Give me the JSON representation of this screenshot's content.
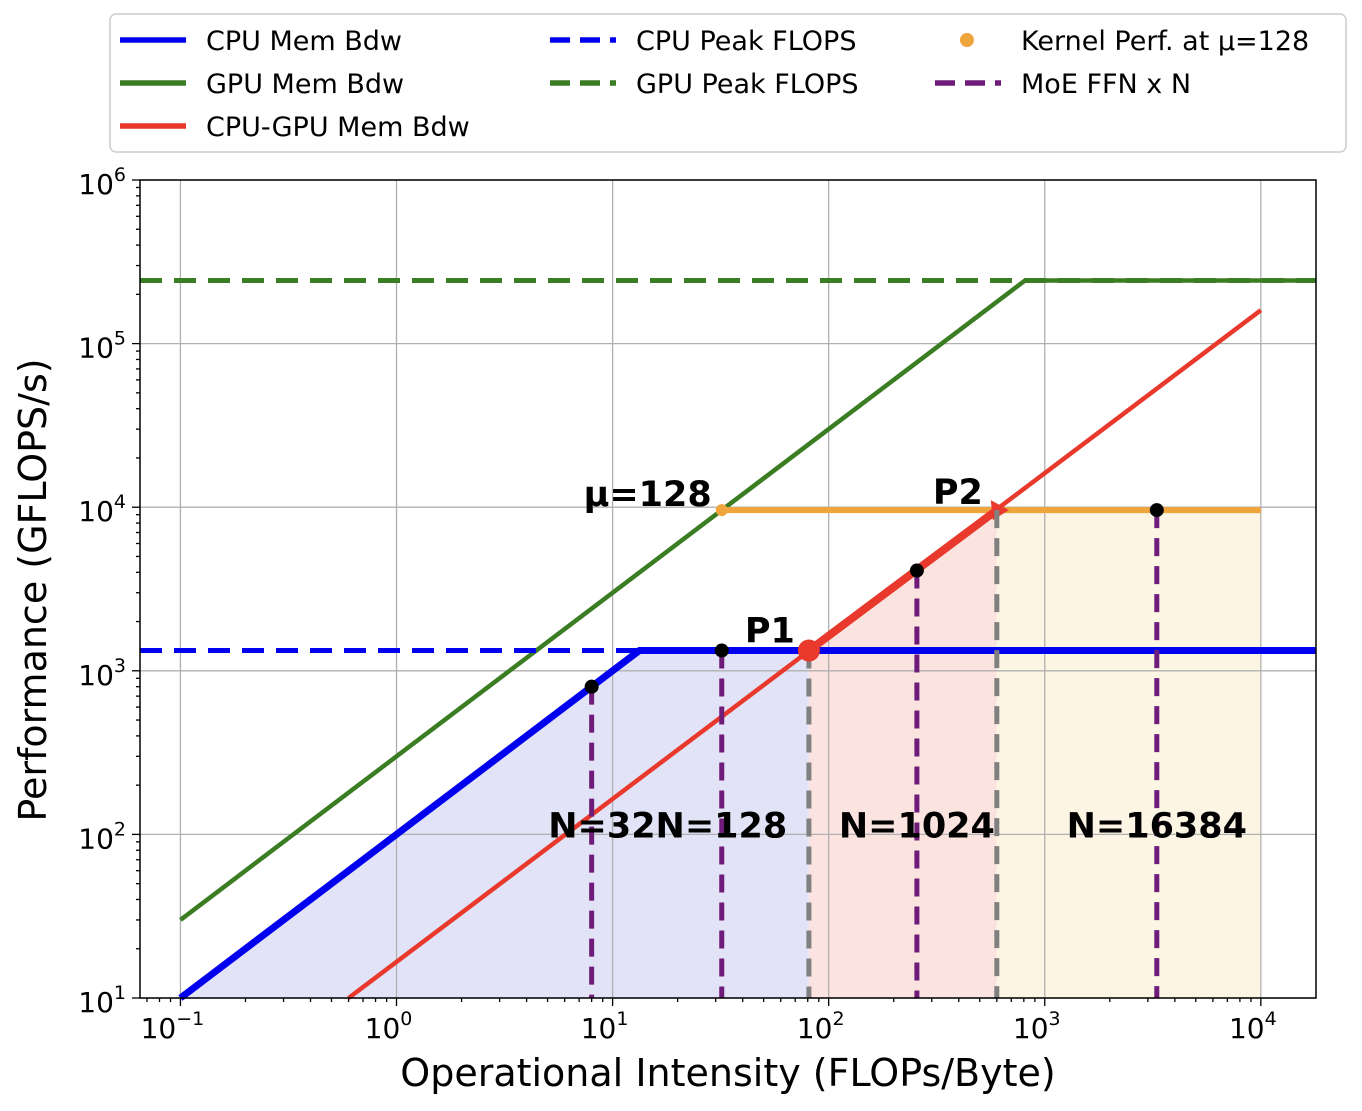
{
  "chart_data": {
    "type": "line",
    "xlabel": "Operational Intensity (FLOPs/Byte)",
    "ylabel": "Performance (GFLOPS/s)",
    "xscale": "log",
    "yscale": "log",
    "xlim": [
      0.065,
      18000
    ],
    "ylim": [
      10,
      1000000
    ],
    "grid": true,
    "legend_position": "top",
    "x_ticks": [
      {
        "base": "10",
        "exp": "−1",
        "value": 0.1
      },
      {
        "base": "10",
        "exp": "0",
        "value": 1
      },
      {
        "base": "10",
        "exp": "1",
        "value": 10
      },
      {
        "base": "10",
        "exp": "2",
        "value": 100
      },
      {
        "base": "10",
        "exp": "3",
        "value": 1000
      },
      {
        "base": "10",
        "exp": "4",
        "value": 10000
      }
    ],
    "y_ticks": [
      {
        "base": "10",
        "exp": "1",
        "value": 10
      },
      {
        "base": "10",
        "exp": "2",
        "value": 100
      },
      {
        "base": "10",
        "exp": "3",
        "value": 1000
      },
      {
        "base": "10",
        "exp": "4",
        "value": 10000
      },
      {
        "base": "10",
        "exp": "5",
        "value": 100000
      },
      {
        "base": "10",
        "exp": "6",
        "value": 1000000
      }
    ],
    "series": [
      {
        "name": "CPU Mem Bdw",
        "color": "#0000ee",
        "style": "solid",
        "width": 7,
        "points": [
          [
            0.1,
            10
          ],
          [
            13.3,
            1330
          ],
          [
            18000,
            1330
          ]
        ]
      },
      {
        "name": "GPU Mem Bdw",
        "color": "#3a7d22",
        "style": "solid",
        "width": 4.5,
        "points": [
          [
            0.1,
            30
          ],
          [
            810,
            243000
          ],
          [
            18000,
            243000
          ]
        ]
      },
      {
        "name": "CPU-GPU Mem Bdw",
        "color": "#e8392c",
        "style": "solid",
        "width": 4.5,
        "points": [
          [
            0.6,
            10
          ],
          [
            10000,
            160000
          ]
        ]
      },
      {
        "name": "CPU Peak FLOPS",
        "color": "#0000ee",
        "style": "dashed",
        "width": 5,
        "points": [
          [
            0.065,
            1330
          ],
          [
            18000,
            1330
          ]
        ]
      },
      {
        "name": "GPU Peak FLOPS",
        "color": "#3a7d22",
        "style": "dashed",
        "width": 5,
        "points": [
          [
            0.065,
            243000
          ],
          [
            18000,
            243000
          ]
        ]
      }
    ],
    "kernel_perf": {
      "name": "Kernel Perf. at μ=128",
      "color": "#f0a53c",
      "points": [
        [
          32,
          9600
        ],
        [
          10000,
          9600
        ]
      ]
    },
    "moe_ffn": {
      "name": "MoE FFN x N",
      "color": "#6e1b7a",
      "points": [
        [
          8,
          800
        ],
        [
          32,
          1330
        ],
        [
          256,
          4100
        ],
        [
          3300,
          9600
        ]
      ]
    },
    "region_boundaries": [
      {
        "x": 81,
        "y": 1330,
        "color": "#808080"
      },
      {
        "x": 600,
        "y": 9600,
        "color": "#808080"
      }
    ],
    "regions": [
      {
        "label": "N=32N=128",
        "color": "#e3e3f8",
        "x_from": 0.1,
        "x_to": 81
      },
      {
        "label": "N=1024",
        "color": "#fbe3e0",
        "x_from": 81,
        "x_to": 600
      },
      {
        "label": "N=16384",
        "color": "#fcf5e4",
        "x_from": 600,
        "x_to": 10000
      }
    ],
    "points": [
      {
        "label": "P1",
        "x": 81,
        "y": 1330,
        "color": "#e8392c"
      },
      {
        "label": "P2",
        "x": 600,
        "y": 9600,
        "color": "#e8392c"
      }
    ],
    "annotations": [
      {
        "text": "μ=128",
        "x": 32,
        "y": 9600
      },
      {
        "text": "N=32N=128",
        "x": 18,
        "y": 110
      },
      {
        "text": "N=1024",
        "x": 256,
        "y": 110
      },
      {
        "text": "N=16384",
        "x": 3300,
        "y": 110
      }
    ],
    "legend": [
      {
        "label": "CPU Mem Bdw",
        "kind": "line",
        "color": "#0000ee"
      },
      {
        "label": "GPU Mem Bdw",
        "kind": "line",
        "color": "#3a7d22"
      },
      {
        "label": "CPU-GPU Mem Bdw",
        "kind": "line",
        "color": "#e8392c"
      },
      {
        "label": "CPU Peak FLOPS",
        "kind": "dashed",
        "color": "#0000ee"
      },
      {
        "label": "GPU Peak FLOPS",
        "kind": "dashed",
        "color": "#3a7d22"
      },
      {
        "label": "Kernel Perf. at μ=128",
        "kind": "dot",
        "color": "#f0a53c"
      },
      {
        "label": "MoE FFN x N",
        "kind": "dashed",
        "color": "#6e1b7a"
      }
    ]
  }
}
